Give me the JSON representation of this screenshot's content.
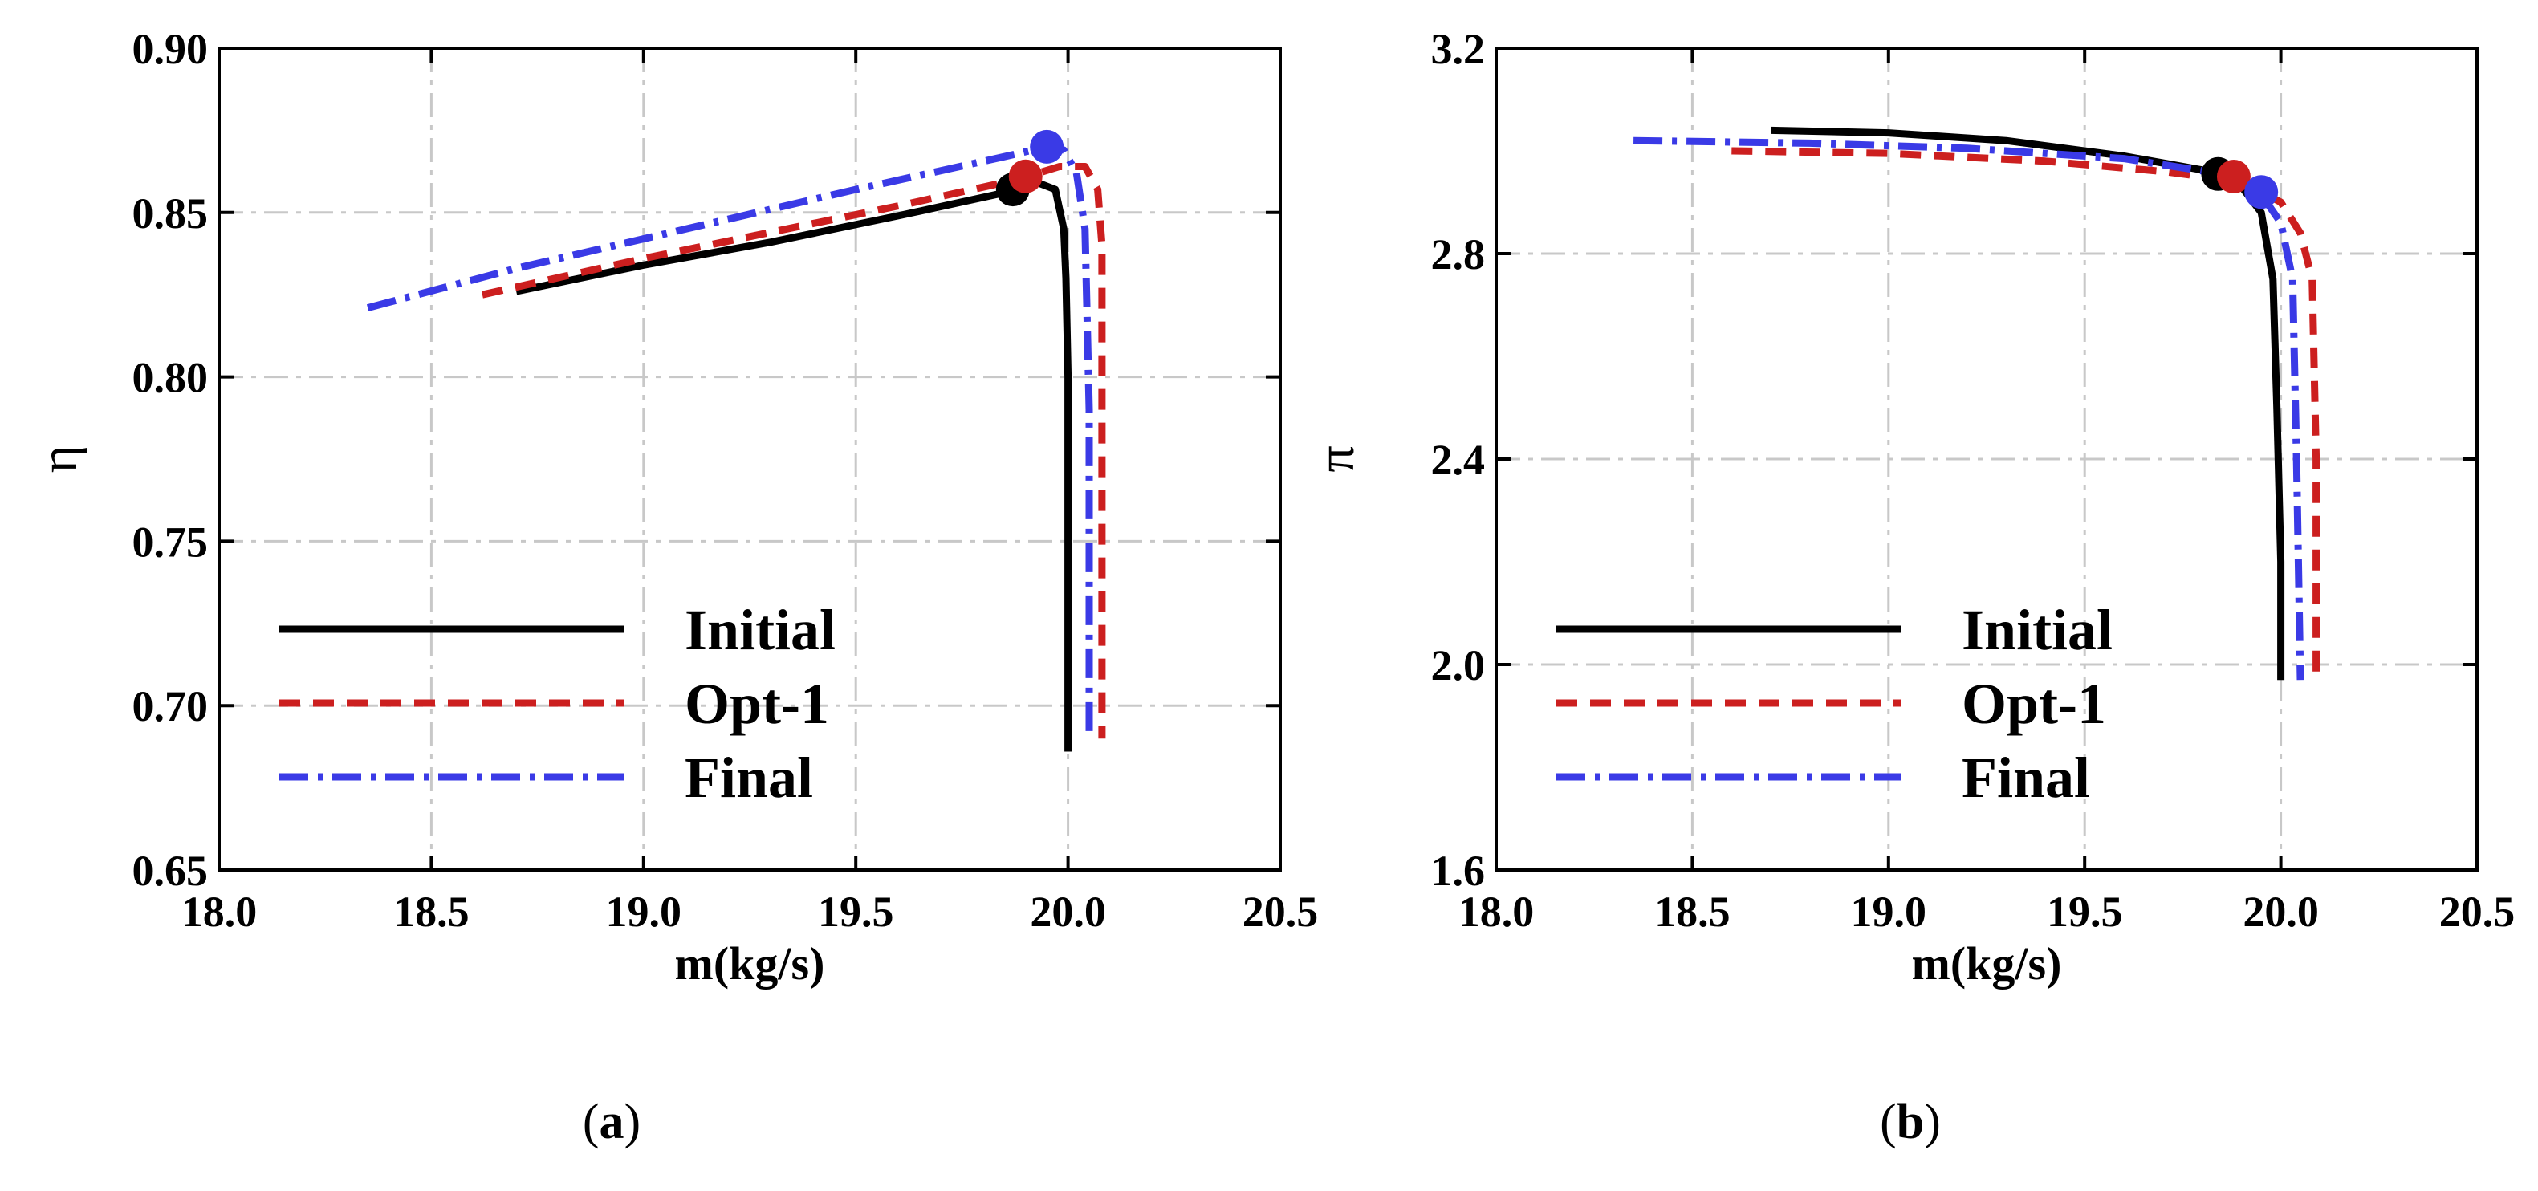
{
  "chart_data": [
    {
      "type": "line",
      "panel": "(a)",
      "caption_letter": "a",
      "xlabel": "m(kg/s)",
      "ylabel": "η",
      "xlim": [
        18.0,
        20.5
      ],
      "ylim": [
        0.65,
        0.9
      ],
      "xticks": [
        18.0,
        18.5,
        19.0,
        19.5,
        20.0,
        20.5
      ],
      "xtick_labels": [
        "18.0",
        "18.5",
        "19.0",
        "19.5",
        "20.0",
        "20.5"
      ],
      "yticks": [
        0.65,
        0.7,
        0.75,
        0.8,
        0.85,
        0.9
      ],
      "ytick_labels": [
        "0.65",
        "0.70",
        "0.75",
        "0.80",
        "0.85",
        "0.90"
      ],
      "grid": true,
      "legend_position": "bottom-left",
      "series": [
        {
          "name": "Initial",
          "color": "#000000",
          "dash": "solid",
          "x": [
            18.7,
            19.0,
            19.3,
            19.6,
            19.85,
            19.93,
            19.97,
            19.99,
            19.995,
            20.0,
            20.0,
            20.0
          ],
          "y": [
            0.826,
            0.834,
            0.841,
            0.849,
            0.856,
            0.859,
            0.857,
            0.845,
            0.83,
            0.8,
            0.75,
            0.686
          ],
          "marker": {
            "x": 19.87,
            "y": 0.857
          }
        },
        {
          "name": "Opt-1",
          "color": "#cc1f1f",
          "dash": "dashed",
          "x": [
            18.62,
            19.0,
            19.3,
            19.6,
            19.88,
            19.98,
            20.04,
            20.07,
            20.08,
            20.08,
            20.08
          ],
          "y": [
            0.825,
            0.836,
            0.844,
            0.852,
            0.86,
            0.864,
            0.864,
            0.857,
            0.84,
            0.78,
            0.69
          ],
          "marker": {
            "x": 19.9,
            "y": 0.861
          }
        },
        {
          "name": "Final",
          "color": "#3a3ae6",
          "dash": "dashdot",
          "x": [
            18.35,
            18.7,
            19.1,
            19.5,
            19.85,
            19.95,
            19.99,
            20.02,
            20.04,
            20.05,
            20.05
          ],
          "y": [
            0.821,
            0.833,
            0.845,
            0.857,
            0.867,
            0.87,
            0.869,
            0.862,
            0.845,
            0.79,
            0.69
          ],
          "marker": {
            "x": 19.95,
            "y": 0.87
          }
        }
      ]
    },
    {
      "type": "line",
      "panel": "(b)",
      "caption_letter": "b",
      "xlabel": "m(kg/s)",
      "ylabel": "π",
      "xlim": [
        18.0,
        20.5
      ],
      "ylim": [
        1.6,
        3.2
      ],
      "xticks": [
        18.0,
        18.5,
        19.0,
        19.5,
        20.0,
        20.5
      ],
      "xtick_labels": [
        "18.0",
        "18.5",
        "19.0",
        "19.5",
        "20.0",
        "20.5"
      ],
      "yticks": [
        1.6,
        2.0,
        2.4,
        2.8,
        3.2
      ],
      "ytick_labels": [
        "1.6",
        "2.0",
        "2.4",
        "2.8",
        "3.2"
      ],
      "grid": true,
      "legend_position": "bottom-left",
      "series": [
        {
          "name": "Initial",
          "color": "#000000",
          "dash": "solid",
          "x": [
            18.7,
            19.0,
            19.3,
            19.6,
            19.82,
            19.9,
            19.95,
            19.98,
            19.99,
            20.0,
            20.0
          ],
          "y": [
            3.04,
            3.035,
            3.02,
            2.99,
            2.96,
            2.93,
            2.88,
            2.75,
            2.5,
            2.2,
            1.97
          ],
          "marker": {
            "x": 19.84,
            "y": 2.955
          }
        },
        {
          "name": "Opt-1",
          "color": "#cc1f1f",
          "dash": "dashed",
          "x": [
            18.6,
            19.0,
            19.4,
            19.7,
            19.9,
            20.0,
            20.05,
            20.08,
            20.09,
            20.09
          ],
          "y": [
            3.0,
            2.995,
            2.98,
            2.96,
            2.94,
            2.9,
            2.84,
            2.75,
            2.4,
            1.97
          ],
          "marker": {
            "x": 19.88,
            "y": 2.95
          }
        },
        {
          "name": "Final",
          "color": "#3a3ae6",
          "dash": "dashdot",
          "x": [
            18.35,
            18.8,
            19.2,
            19.6,
            19.85,
            19.95,
            20.0,
            20.03,
            20.04,
            20.05
          ],
          "y": [
            3.02,
            3.015,
            3.005,
            2.985,
            2.955,
            2.915,
            2.86,
            2.75,
            2.4,
            1.97
          ],
          "marker": {
            "x": 19.95,
            "y": 2.92
          }
        }
      ]
    }
  ]
}
